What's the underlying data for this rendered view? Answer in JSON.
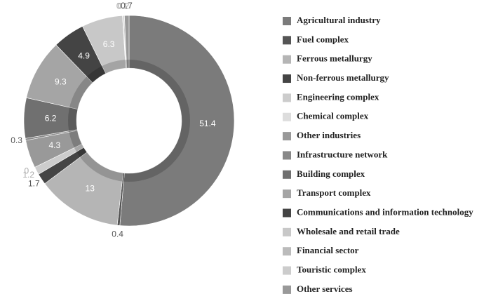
{
  "chart_data": {
    "type": "donut",
    "categories": [
      "Agricultural industry",
      "Fuel complex",
      "Ferrous metallurgy",
      "Non-ferrous metallurgy",
      "Engineering complex",
      "Chemical complex",
      "Other industries",
      "Infrastructure network",
      "Building complex",
      "Transport complex",
      "Communications and information technology",
      "Wholesale and retail trade",
      "Financial sector",
      "Touristic complex",
      "Other services"
    ],
    "values": [
      51.4,
      0.4,
      13,
      1.7,
      1.2,
      0,
      4.3,
      0.3,
      6.2,
      9.3,
      4.9,
      6.3,
      0.1,
      0.2,
      0.7
    ],
    "colors": [
      "#7b7b7b",
      "#555555",
      "#b5b5b5",
      "#444444",
      "#cccccc",
      "#dddddd",
      "#999999",
      "#888888",
      "#707070",
      "#a5a5a5",
      "#444444",
      "#c8c8c8",
      "#bbbbbb",
      "#cccccc",
      "#999999"
    ],
    "legend": "right"
  }
}
